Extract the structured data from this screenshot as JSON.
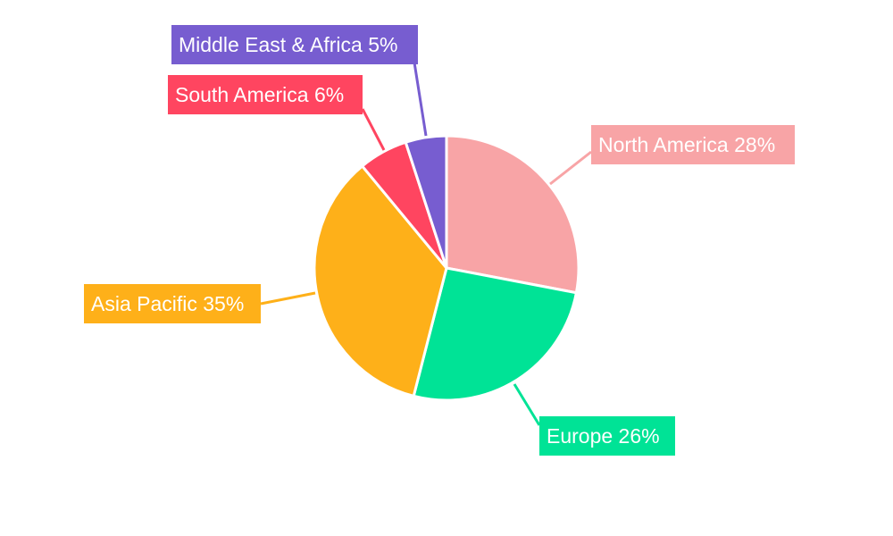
{
  "chart_data": {
    "type": "pie",
    "title": "",
    "start_angle": "12 o'clock, clockwise",
    "legend": "none",
    "slices": [
      {
        "label": "North America",
        "value": 28,
        "display": "North America 28%",
        "color": "#f8a4a6"
      },
      {
        "label": "Europe",
        "value": 26,
        "display": "Europe 26%",
        "color": "#00e396"
      },
      {
        "label": "Asia Pacific",
        "value": 35,
        "display": "Asia Pacific 35%",
        "color": "#feb019"
      },
      {
        "label": "South America",
        "value": 6,
        "display": "South America 6%",
        "color": "#ff4560"
      },
      {
        "label": "Middle East & Africa",
        "value": 5,
        "display": "Middle East & Africa 5%",
        "color": "#775dd0"
      }
    ]
  }
}
